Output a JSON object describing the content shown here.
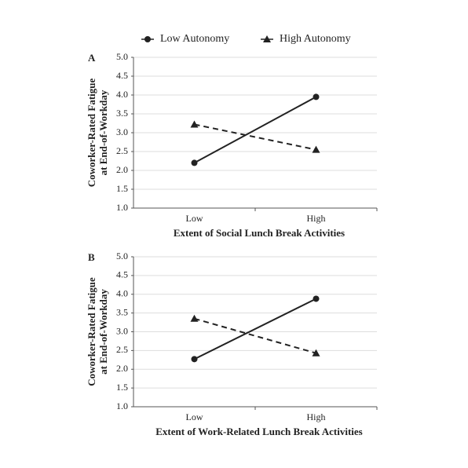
{
  "chart_data": [
    {
      "type": "line",
      "panel": "A",
      "ylabel": [
        "Coworker-Rated Fatigue",
        "at End-of-Workday"
      ],
      "xlabel": "Extent of Social Lunch Break Activities",
      "categories": [
        "Low",
        "High"
      ],
      "series": [
        {
          "name": "Low Autonomy",
          "color": "#222222",
          "linestyle": "solid",
          "marker": "circle",
          "values": [
            2.2,
            3.95
          ]
        },
        {
          "name": "High Autonomy",
          "color": "#222222",
          "linestyle": "dashed",
          "marker": "triangle",
          "values": [
            3.22,
            2.55
          ]
        }
      ],
      "ylim": [
        1,
        5
      ],
      "yticks": [
        {
          "value": 1,
          "label": "1.0"
        },
        1.5,
        {
          "value": 2,
          "label": "2.0"
        },
        2.5,
        {
          "value": 3,
          "label": "3.0"
        },
        3.5,
        {
          "value": 4,
          "label": "4.0"
        },
        4.5,
        {
          "value": 5,
          "label": "5.0"
        }
      ],
      "grid": true
    },
    {
      "type": "line",
      "panel": "B",
      "ylabel": [
        "Coworker-Rated Fatigue",
        "at End-of-Workday"
      ],
      "xlabel": "Extent of Work-Related Lunch Break Activities",
      "categories": [
        "Low",
        "High"
      ],
      "series": [
        {
          "name": "Low Autonomy",
          "color": "#222222",
          "linestyle": "solid",
          "marker": "circle",
          "values": [
            2.27,
            3.88
          ]
        },
        {
          "name": "High Autonomy",
          "color": "#222222",
          "linestyle": "dashed",
          "marker": "triangle",
          "values": [
            3.35,
            2.43
          ]
        }
      ],
      "ylim": [
        1,
        5
      ],
      "yticks": [
        {
          "value": 1,
          "label": "1.0"
        },
        1.5,
        {
          "value": 2,
          "label": "2.0"
        },
        2.5,
        {
          "value": 3,
          "label": "3.0"
        },
        3.5,
        {
          "value": 4,
          "label": "4.0"
        },
        4.5,
        {
          "value": 5,
          "label": "5.0"
        }
      ],
      "grid": true
    }
  ]
}
